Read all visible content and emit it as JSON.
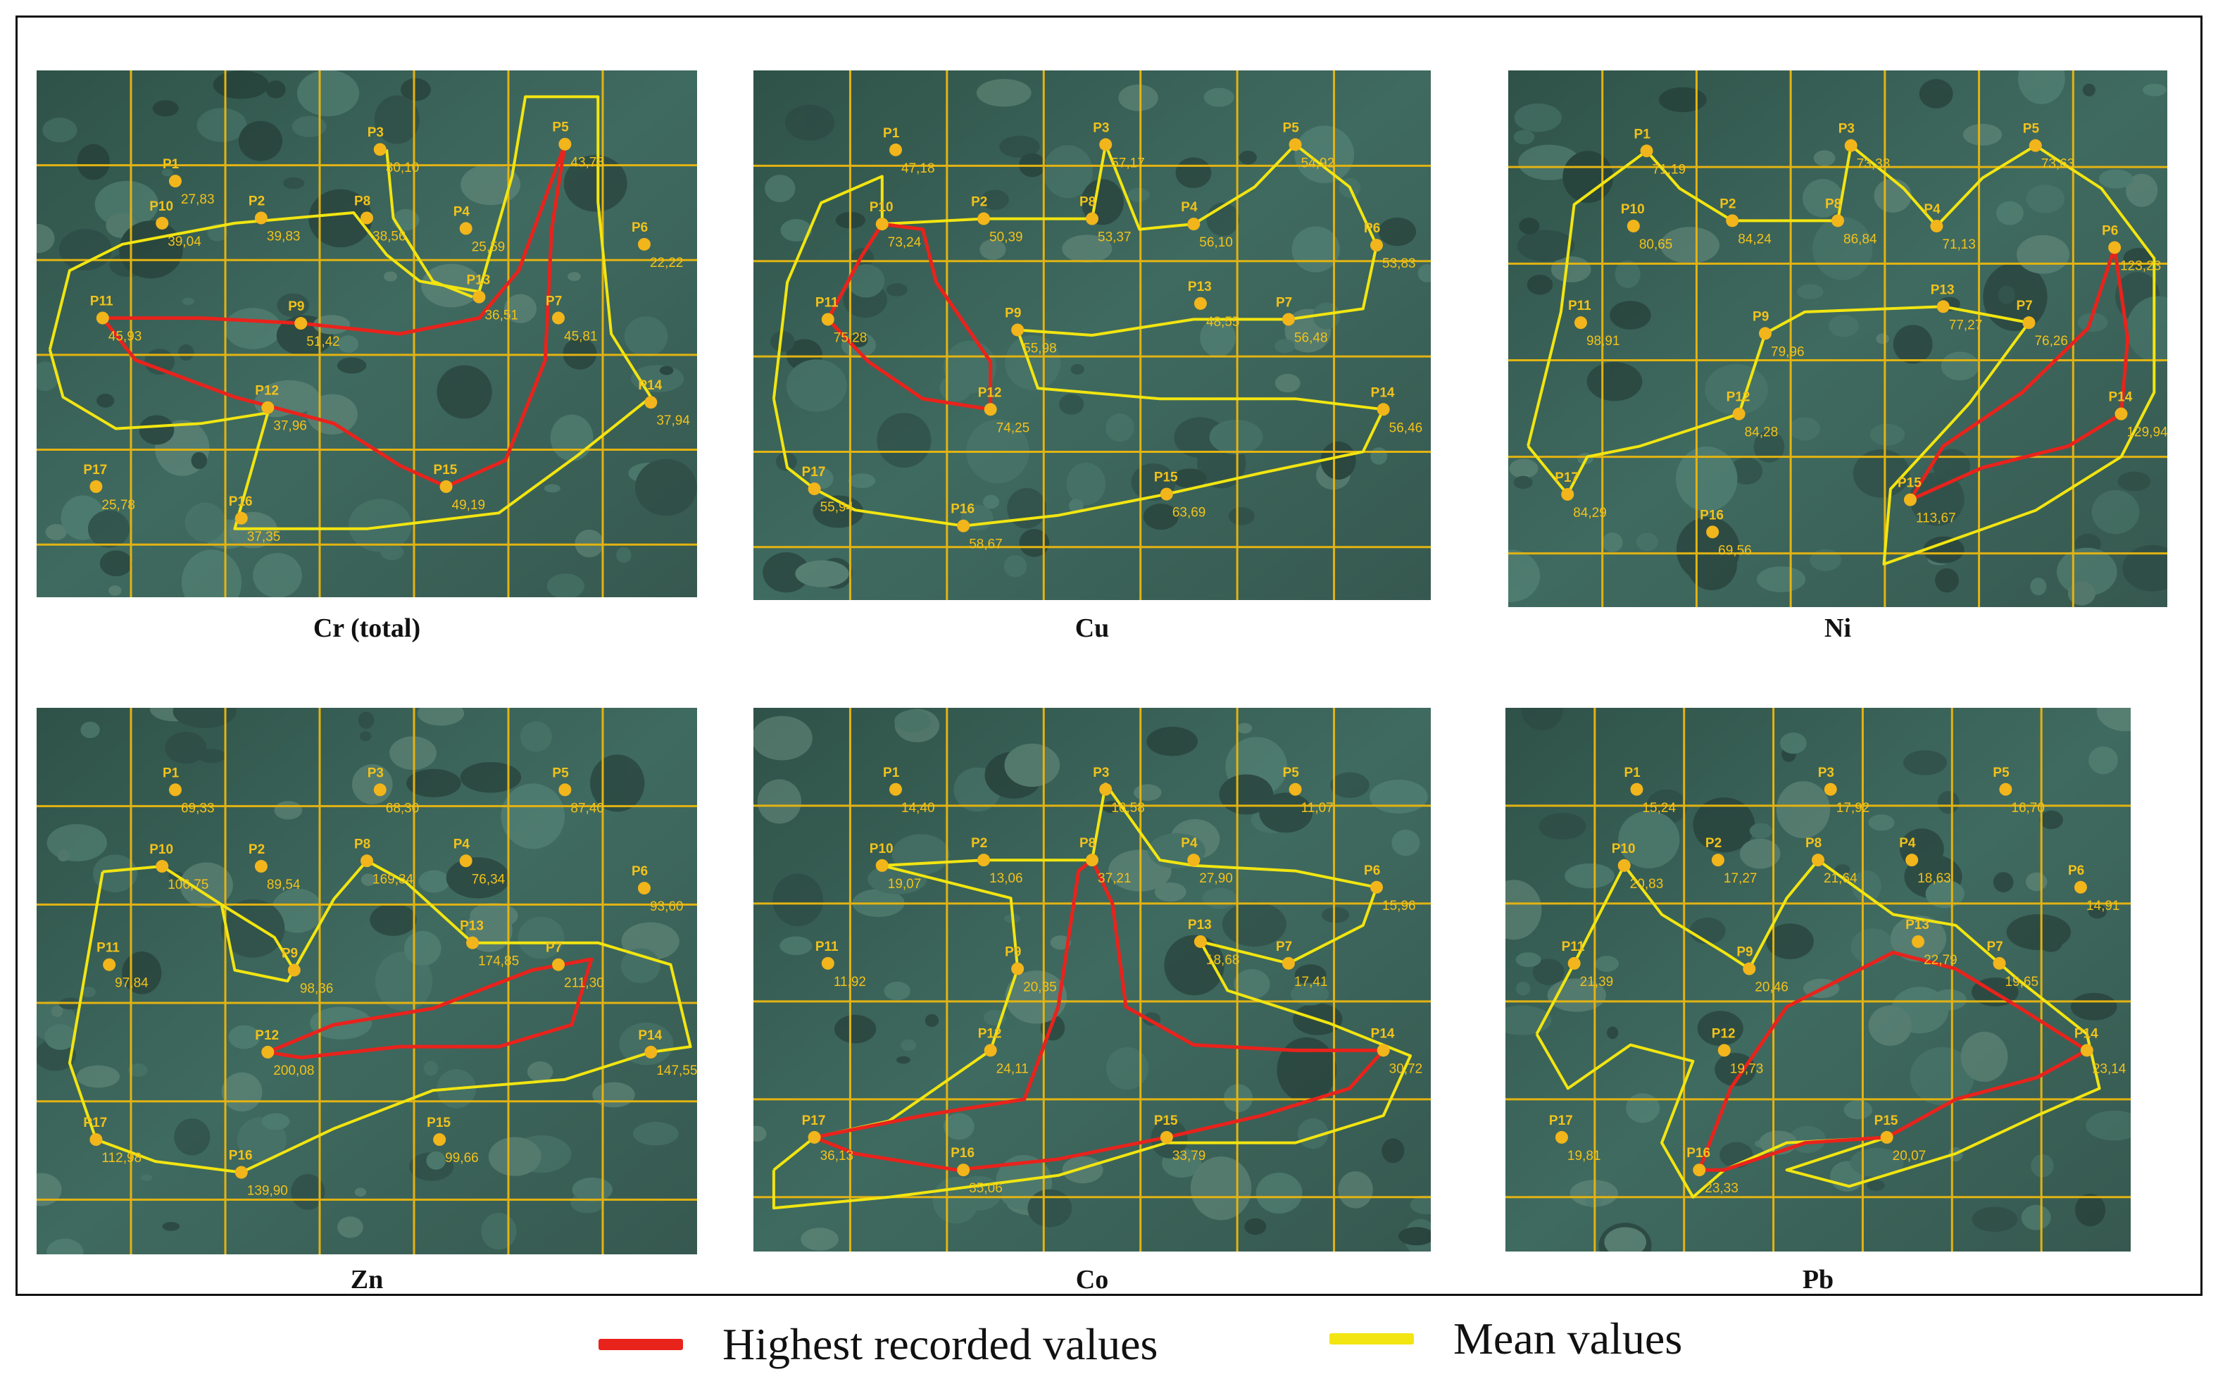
{
  "legend": {
    "highest": {
      "label": "Highest recorded values",
      "color": "#e8231c"
    },
    "mean": {
      "label": "Mean values",
      "color": "#f2e511"
    }
  },
  "colors": {
    "grid": "#e3b312",
    "point": "#f2b51b",
    "label": "#f2c21b",
    "map_base": "#3f6a60"
  },
  "panels": [
    {
      "caption": "Cr (total)",
      "points": [
        {
          "id": "P1",
          "value": "27,83"
        },
        {
          "id": "P2",
          "value": "39,83"
        },
        {
          "id": "P3",
          "value": "30,10"
        },
        {
          "id": "P4",
          "value": "25,59"
        },
        {
          "id": "P5",
          "value": "43,78"
        },
        {
          "id": "P6",
          "value": "22,22"
        },
        {
          "id": "P7",
          "value": "45,81"
        },
        {
          "id": "P8",
          "value": "38,56"
        },
        {
          "id": "P9",
          "value": "51,42"
        },
        {
          "id": "P10",
          "value": "39,04"
        },
        {
          "id": "P11",
          "value": "45,93"
        },
        {
          "id": "P12",
          "value": "37,96"
        },
        {
          "id": "P13",
          "value": "36,51"
        },
        {
          "id": "P14",
          "value": "37,94"
        },
        {
          "id": "P15",
          "value": "49,19"
        },
        {
          "id": "P16",
          "value": "37,35"
        },
        {
          "id": "P17",
          "value": "25,78"
        }
      ]
    },
    {
      "caption": "Cu",
      "points": [
        {
          "id": "P1",
          "value": "47,18"
        },
        {
          "id": "P2",
          "value": "50,39"
        },
        {
          "id": "P3",
          "value": "57,17"
        },
        {
          "id": "P4",
          "value": "56,10"
        },
        {
          "id": "P5",
          "value": "54,92"
        },
        {
          "id": "P6",
          "value": "53,83"
        },
        {
          "id": "P7",
          "value": "56,48"
        },
        {
          "id": "P8",
          "value": "53,37"
        },
        {
          "id": "P9",
          "value": "55,98"
        },
        {
          "id": "P10",
          "value": "73,24"
        },
        {
          "id": "P11",
          "value": "75,28"
        },
        {
          "id": "P12",
          "value": "74,25"
        },
        {
          "id": "P13",
          "value": "48,55"
        },
        {
          "id": "P14",
          "value": "56,46"
        },
        {
          "id": "P15",
          "value": "63,69"
        },
        {
          "id": "P16",
          "value": "58,67"
        },
        {
          "id": "P17",
          "value": "55,94"
        }
      ]
    },
    {
      "caption": "Ni",
      "points": [
        {
          "id": "P1",
          "value": "71,19"
        },
        {
          "id": "P2",
          "value": "84,24"
        },
        {
          "id": "P3",
          "value": "73,33"
        },
        {
          "id": "P4",
          "value": "71,13"
        },
        {
          "id": "P5",
          "value": "73,63"
        },
        {
          "id": "P6",
          "value": "123,23"
        },
        {
          "id": "P7",
          "value": "76,26"
        },
        {
          "id": "P8",
          "value": "86,84"
        },
        {
          "id": "P9",
          "value": "79,96"
        },
        {
          "id": "P10",
          "value": "80,65"
        },
        {
          "id": "P11",
          "value": "98,91"
        },
        {
          "id": "P12",
          "value": "84,28"
        },
        {
          "id": "P13",
          "value": "77,27"
        },
        {
          "id": "P14",
          "value": "129,94"
        },
        {
          "id": "P15",
          "value": "113,67"
        },
        {
          "id": "P16",
          "value": "69,56"
        },
        {
          "id": "P17",
          "value": "84,29"
        }
      ]
    },
    {
      "caption": "Zn",
      "points": [
        {
          "id": "P1",
          "value": "69,33"
        },
        {
          "id": "P2",
          "value": "89,54"
        },
        {
          "id": "P3",
          "value": "68,30"
        },
        {
          "id": "P4",
          "value": "76,34"
        },
        {
          "id": "P5",
          "value": "87,40"
        },
        {
          "id": "P6",
          "value": "93,60"
        },
        {
          "id": "P7",
          "value": "211,30"
        },
        {
          "id": "P8",
          "value": "169,34"
        },
        {
          "id": "P9",
          "value": "98,36"
        },
        {
          "id": "P10",
          "value": "106,75"
        },
        {
          "id": "P11",
          "value": "97,84"
        },
        {
          "id": "P12",
          "value": "200,08"
        },
        {
          "id": "P13",
          "value": "174,85"
        },
        {
          "id": "P14",
          "value": "147,55"
        },
        {
          "id": "P15",
          "value": "99,66"
        },
        {
          "id": "P16",
          "value": "139,90"
        },
        {
          "id": "P17",
          "value": "112,98"
        }
      ]
    },
    {
      "caption": "Co",
      "points": [
        {
          "id": "P1",
          "value": "14,40"
        },
        {
          "id": "P2",
          "value": "13,06"
        },
        {
          "id": "P3",
          "value": "16,58"
        },
        {
          "id": "P4",
          "value": "27,90"
        },
        {
          "id": "P5",
          "value": "11,07"
        },
        {
          "id": "P6",
          "value": "15,96"
        },
        {
          "id": "P7",
          "value": "17,41"
        },
        {
          "id": "P8",
          "value": "37,21"
        },
        {
          "id": "P9",
          "value": "20,35"
        },
        {
          "id": "P10",
          "value": "19,07"
        },
        {
          "id": "P11",
          "value": "11,92"
        },
        {
          "id": "P12",
          "value": "24,11"
        },
        {
          "id": "P13",
          "value": "18,68"
        },
        {
          "id": "P14",
          "value": "30,72"
        },
        {
          "id": "P15",
          "value": "33,79"
        },
        {
          "id": "P16",
          "value": "35,06"
        },
        {
          "id": "P17",
          "value": "36,13"
        }
      ]
    },
    {
      "caption": "Pb",
      "points": [
        {
          "id": "P1",
          "value": "15,24"
        },
        {
          "id": "P2",
          "value": "17,27"
        },
        {
          "id": "P3",
          "value": "17,92"
        },
        {
          "id": "P4",
          "value": "18,63"
        },
        {
          "id": "P5",
          "value": "16,70"
        },
        {
          "id": "P6",
          "value": "14,91"
        },
        {
          "id": "P7",
          "value": "19,65"
        },
        {
          "id": "P8",
          "value": "21,64"
        },
        {
          "id": "P9",
          "value": "20,46"
        },
        {
          "id": "P10",
          "value": "20,83"
        },
        {
          "id": "P11",
          "value": "21,39"
        },
        {
          "id": "P12",
          "value": "19,73"
        },
        {
          "id": "P13",
          "value": "22,79"
        },
        {
          "id": "P14",
          "value": "23,14"
        },
        {
          "id": "P15",
          "value": "20,07"
        },
        {
          "id": "P16",
          "value": "23,33"
        },
        {
          "id": "P17",
          "value": "19,81"
        }
      ]
    }
  ]
}
